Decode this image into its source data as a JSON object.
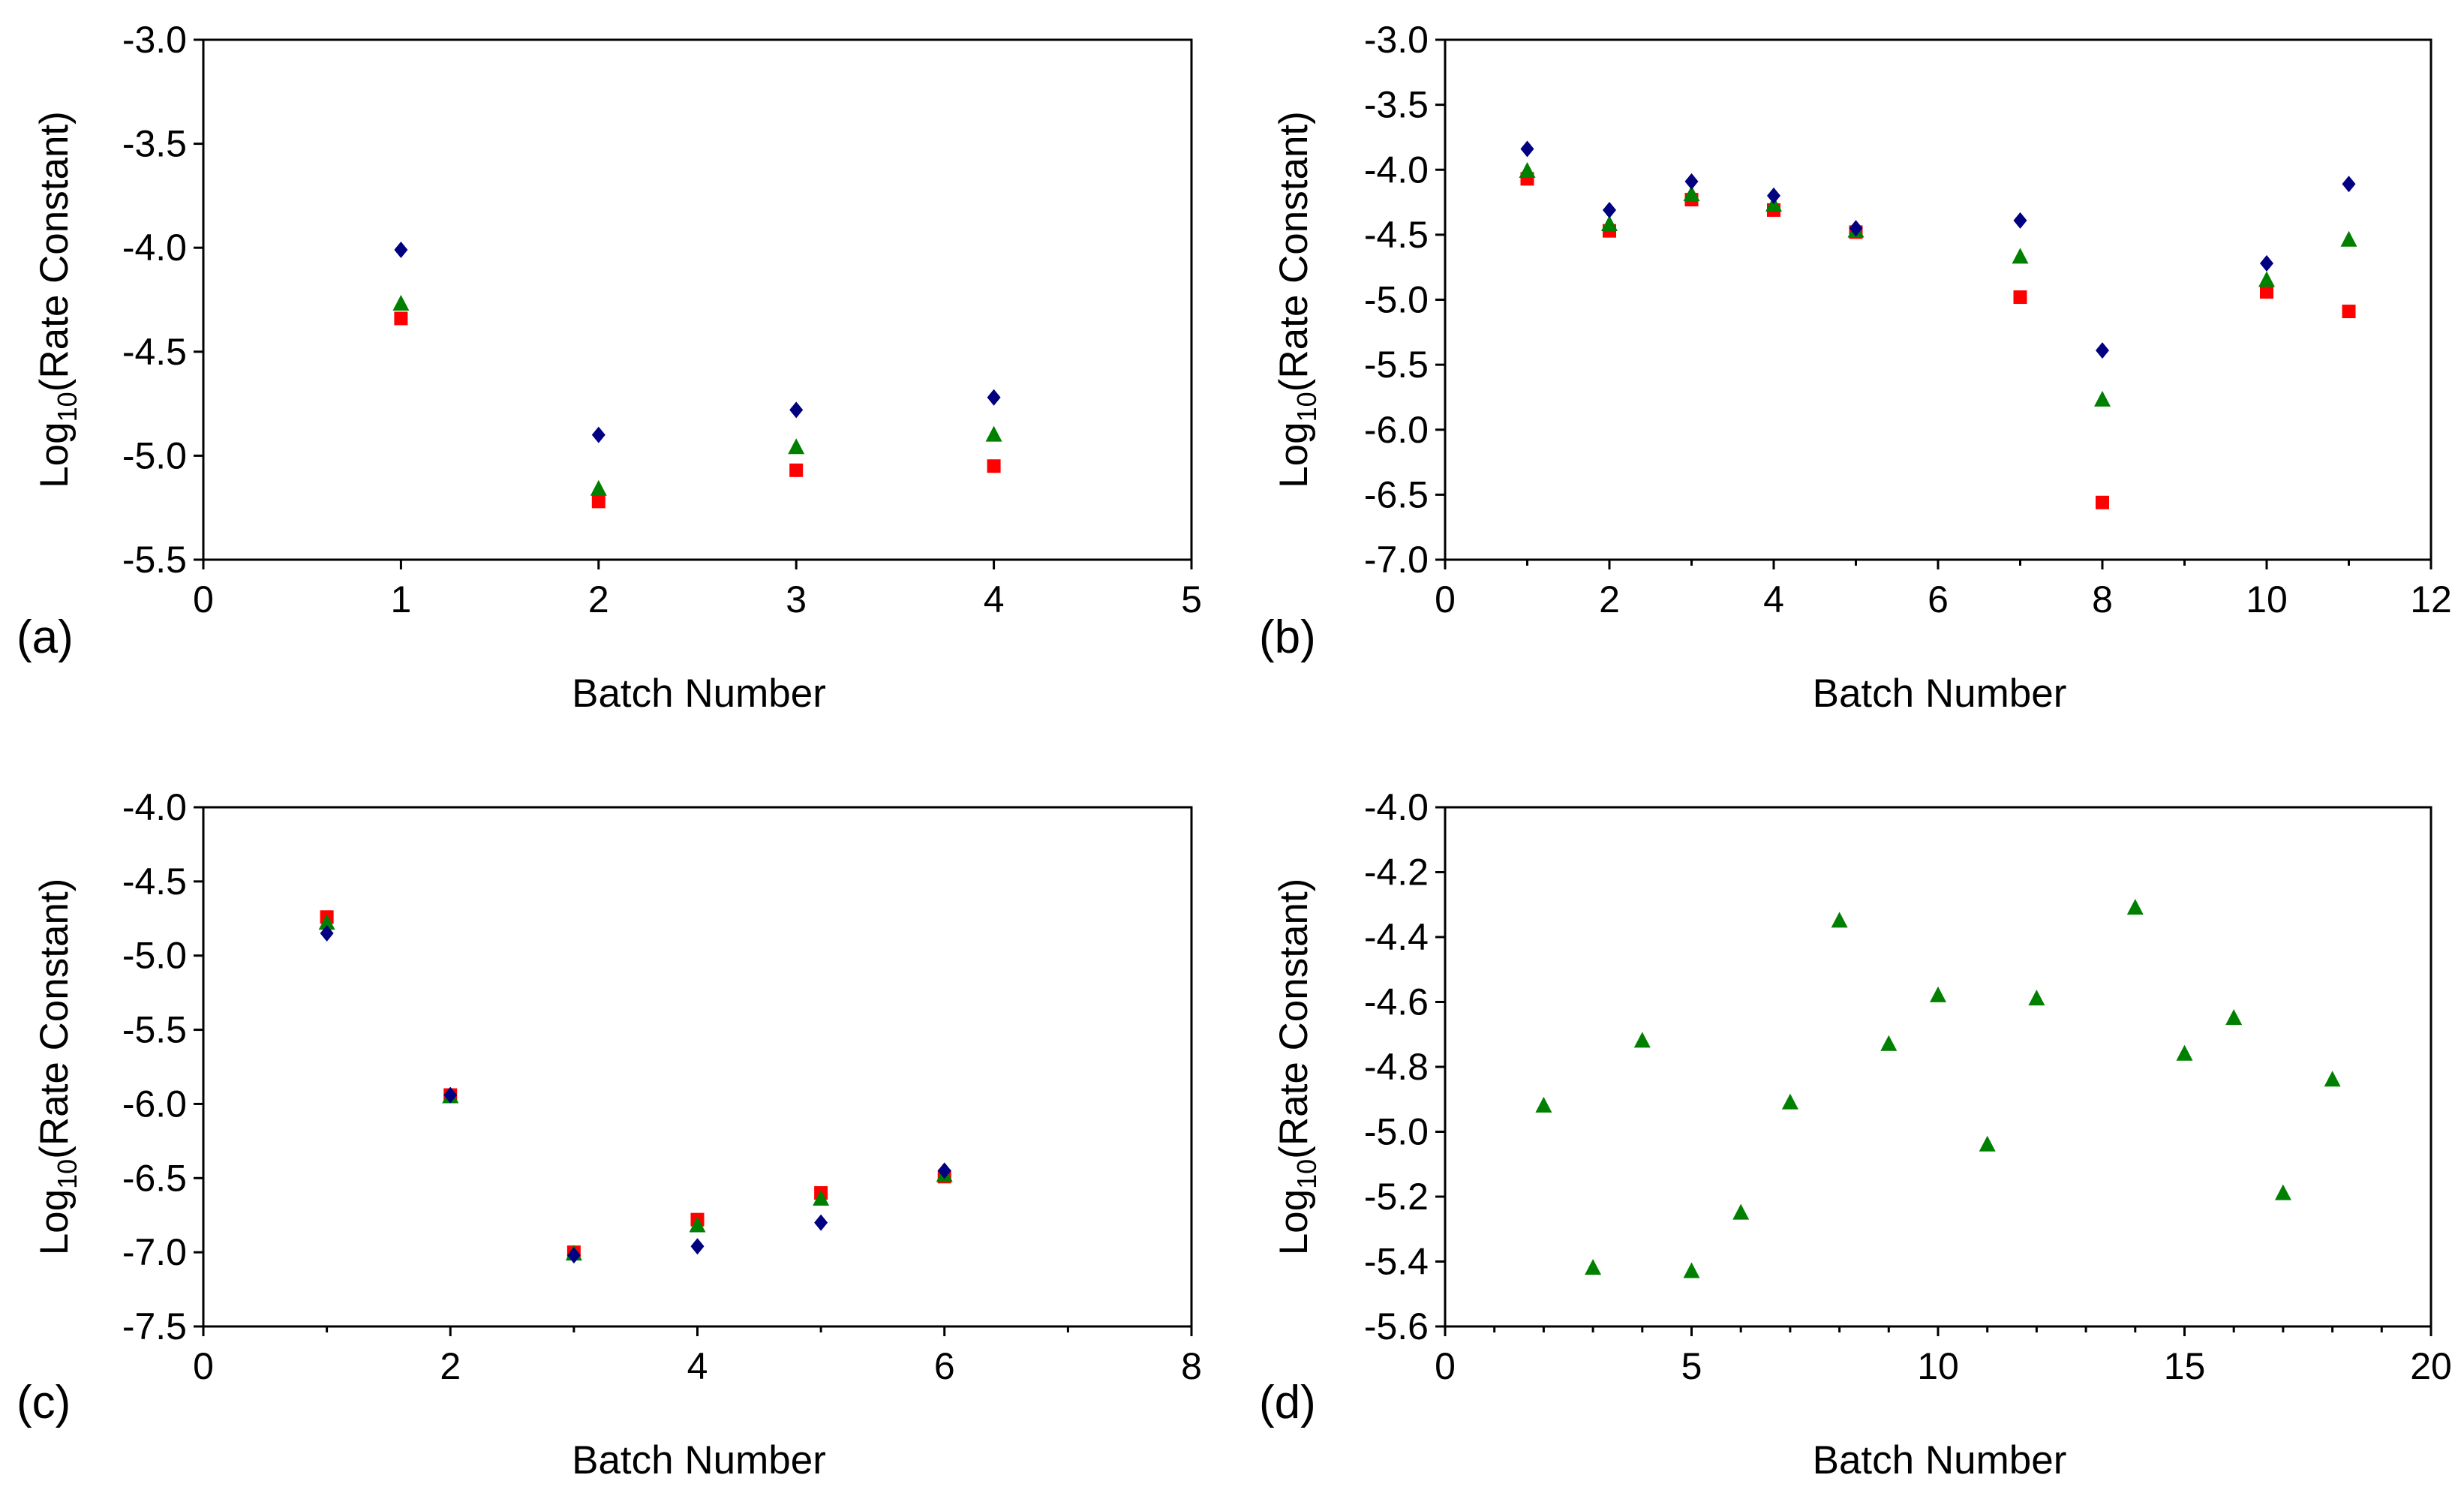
{
  "figure": {
    "panels": [
      {
        "id": "a",
        "letter": "(a)"
      },
      {
        "id": "b",
        "letter": "(b)"
      },
      {
        "id": "c",
        "letter": "(c)"
      },
      {
        "id": "d",
        "letter": "(d)"
      }
    ]
  },
  "colors": {
    "diamond_series": "#000080",
    "triangle_series": "#008000",
    "square_series": "#ff0000",
    "axis": "#000000"
  },
  "chart_data": [
    {
      "type": "scatter",
      "panel": "(a)",
      "xlabel": "Batch Number",
      "ylabel_base": "Log",
      "ylabel_sub": "10",
      "ylabel_rest": "(Rate Constant)",
      "xlim": [
        0,
        5
      ],
      "ylim": [
        -5.5,
        -3.0
      ],
      "xticks": [
        0,
        1,
        2,
        3,
        4,
        5
      ],
      "xtick_labels": [
        "0",
        "1",
        "2",
        "3",
        "4",
        "5"
      ],
      "xminor": [],
      "yticks": [
        -5.5,
        -5.0,
        -4.5,
        -4.0,
        -3.5,
        -3.0
      ],
      "ytick_labels": [
        "-5.5",
        "-5.0",
        "-4.5",
        "-4.0",
        "-3.5",
        "-3.0"
      ],
      "series": [
        {
          "name": "diamond",
          "marker": "diamond",
          "x": [
            1,
            2,
            3,
            4
          ],
          "y": [
            -4.01,
            -4.9,
            -4.78,
            -4.72
          ]
        },
        {
          "name": "triangle",
          "marker": "triangle",
          "x": [
            1,
            2,
            3,
            4
          ],
          "y": [
            -4.27,
            -5.16,
            -4.96,
            -4.9
          ]
        },
        {
          "name": "square",
          "marker": "square",
          "x": [
            1,
            2,
            3,
            4
          ],
          "y": [
            -4.34,
            -5.22,
            -5.07,
            -5.05
          ]
        }
      ]
    },
    {
      "type": "scatter",
      "panel": "(b)",
      "xlabel": "Batch Number",
      "ylabel_base": "Log",
      "ylabel_sub": "10",
      "ylabel_rest": "(Rate Constant)",
      "xlim": [
        0,
        12
      ],
      "ylim": [
        -7.0,
        -3.0
      ],
      "xticks": [
        0,
        2,
        4,
        6,
        8,
        10,
        12
      ],
      "xtick_labels": [
        "0",
        "2",
        "4",
        "6",
        "8",
        "10",
        "12"
      ],
      "xminor": [
        1,
        3,
        5,
        7,
        9,
        11
      ],
      "yticks": [
        -7.0,
        -6.5,
        -6.0,
        -5.5,
        -5.0,
        -4.5,
        -4.0,
        -3.5,
        -3.0
      ],
      "ytick_labels": [
        "-7.0",
        "-6.5",
        "-6.0",
        "-5.5",
        "-5.0",
        "-4.5",
        "-4.0",
        "-3.5",
        "-3.0"
      ],
      "series": [
        {
          "name": "diamond",
          "marker": "diamond",
          "x": [
            1,
            2,
            3,
            4,
            5,
            7,
            8,
            10,
            11
          ],
          "y": [
            -3.84,
            -4.31,
            -4.09,
            -4.2,
            -4.45,
            -4.39,
            -5.39,
            -4.72,
            -4.11
          ]
        },
        {
          "name": "triangle",
          "marker": "triangle",
          "x": [
            1,
            2,
            3,
            4,
            5,
            7,
            8,
            10,
            11
          ],
          "y": [
            -4.01,
            -4.42,
            -4.19,
            -4.27,
            -4.47,
            -4.67,
            -5.77,
            -4.85,
            -4.54
          ]
        },
        {
          "name": "square",
          "marker": "square",
          "x": [
            1,
            2,
            3,
            4,
            5,
            7,
            8,
            10,
            11
          ],
          "y": [
            -4.07,
            -4.47,
            -4.23,
            -4.31,
            -4.48,
            -4.98,
            -6.56,
            -4.94,
            -5.09
          ]
        }
      ]
    },
    {
      "type": "scatter",
      "panel": "(c)",
      "xlabel": "Batch Number",
      "ylabel_base": "Log",
      "ylabel_sub": "10",
      "ylabel_rest": "(Rate Constant)",
      "xlim": [
        0,
        8
      ],
      "ylim": [
        -7.5,
        -4.0
      ],
      "xticks": [
        0,
        2,
        4,
        6,
        8
      ],
      "xtick_labels": [
        "0",
        "2",
        "4",
        "6",
        "8"
      ],
      "xminor": [
        1,
        3,
        5,
        7
      ],
      "yticks": [
        -7.5,
        -7.0,
        -6.5,
        -6.0,
        -5.5,
        -5.0,
        -4.5,
        -4.0
      ],
      "ytick_labels": [
        "-7.5",
        "-7.0",
        "-6.5",
        "-6.0",
        "-5.5",
        "-5.0",
        "-4.5",
        "-4.0"
      ],
      "series": [
        {
          "name": "diamond",
          "marker": "diamond",
          "x": [
            1,
            2,
            3,
            4,
            5,
            6
          ],
          "y": [
            -4.85,
            -5.94,
            -7.02,
            -6.96,
            -6.8,
            -6.45
          ]
        },
        {
          "name": "triangle",
          "marker": "triangle",
          "x": [
            1,
            2,
            3,
            4,
            5,
            6
          ],
          "y": [
            -4.78,
            -5.95,
            -7.01,
            -6.82,
            -6.64,
            -6.48
          ]
        },
        {
          "name": "square",
          "marker": "square",
          "x": [
            1,
            2,
            3,
            4,
            5,
            6
          ],
          "y": [
            -4.74,
            -5.94,
            -7.0,
            -6.78,
            -6.6,
            -6.49
          ]
        }
      ]
    },
    {
      "type": "scatter",
      "panel": "(d)",
      "xlabel": "Batch Number",
      "ylabel_base": "Log",
      "ylabel_sub": "10",
      "ylabel_rest": "(Rate Constant)",
      "xlim": [
        0,
        20
      ],
      "ylim": [
        -5.6,
        -4.0
      ],
      "xticks": [
        0,
        5,
        10,
        15,
        20
      ],
      "xtick_labels": [
        "0",
        "5",
        "10",
        "15",
        "20"
      ],
      "xminor": [
        1,
        2,
        3,
        4,
        6,
        7,
        8,
        9,
        11,
        12,
        13,
        14,
        16,
        17,
        18,
        19
      ],
      "yticks": [
        -5.6,
        -5.4,
        -5.2,
        -5.0,
        -4.8,
        -4.6,
        -4.4,
        -4.2,
        -4.0
      ],
      "ytick_labels": [
        "-5.6",
        "-5.4",
        "-5.2",
        "-5.0",
        "-4.8",
        "-4.6",
        "-4.4",
        "-4.2",
        "-4.0"
      ],
      "series": [
        {
          "name": "triangle",
          "marker": "triangle",
          "x": [
            2,
            3,
            4,
            5,
            6,
            7,
            8,
            9,
            10,
            11,
            12,
            14,
            15,
            16,
            17,
            18
          ],
          "y": [
            -4.92,
            -5.42,
            -4.72,
            -5.43,
            -5.25,
            -4.91,
            -4.35,
            -4.73,
            -4.58,
            -5.04,
            -4.59,
            -4.31,
            -4.76,
            -4.65,
            -5.19,
            -4.84
          ]
        }
      ]
    }
  ]
}
